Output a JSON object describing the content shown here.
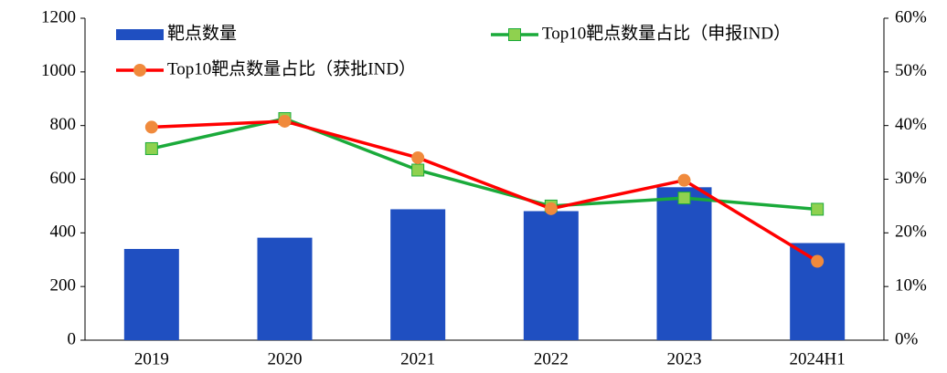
{
  "chart_data": {
    "type": "bar",
    "categories": [
      "2019",
      "2020",
      "2021",
      "2022",
      "2023",
      "2024H1"
    ],
    "series": [
      {
        "name": "靶点数量",
        "type": "bar",
        "color": "#1f4fc1",
        "values": [
          340,
          382,
          488,
          481,
          570,
          362
        ]
      },
      {
        "name": "Top10靶点数量占比（申报IND）",
        "type": "line",
        "axis": "y2",
        "color": "#1aaa3a",
        "marker_color": "#8fd14f",
        "marker": "square",
        "values": [
          35.7,
          41.3,
          31.7,
          25.0,
          26.5,
          24.4
        ]
      },
      {
        "name": "Top10靶点数量占比（获批IND）",
        "type": "line",
        "axis": "y2",
        "color": "#ff0000",
        "marker_color": "#f08a3c",
        "marker": "circle",
        "values": [
          39.7,
          40.8,
          34.0,
          24.5,
          29.8,
          14.7
        ]
      }
    ],
    "ylim": [
      0,
      1200
    ],
    "yticks": [
      0,
      200,
      400,
      600,
      800,
      1000,
      1200
    ],
    "y2lim": [
      0,
      60
    ],
    "y2ticks": [
      {
        "value": 0,
        "label": "0%"
      },
      {
        "value": 10,
        "label": "10%"
      },
      {
        "value": 20,
        "label": "20%"
      },
      {
        "value": 30,
        "label": "30%"
      },
      {
        "value": 40,
        "label": "40%"
      },
      {
        "value": 50,
        "label": "50%"
      },
      {
        "value": 60,
        "label": "60%"
      }
    ],
    "grid": false
  }
}
